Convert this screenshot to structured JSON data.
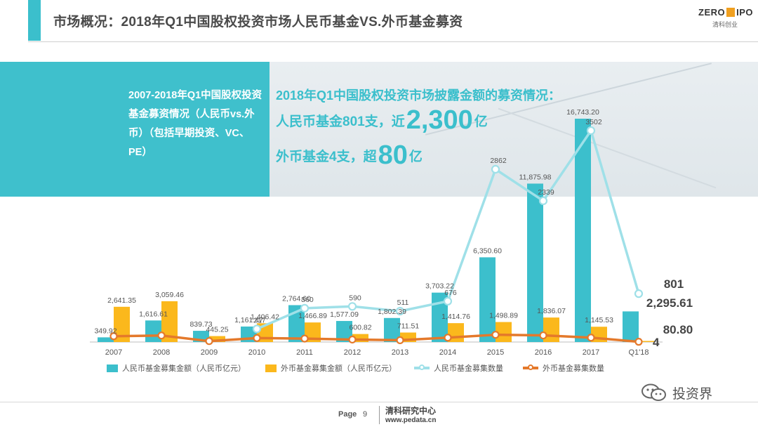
{
  "header": {
    "title": "市场概况：2018年Q1中国股权投资市场人民币基金VS.外币基金募资",
    "logo_main": "ZERO",
    "logo_tail": "IPO",
    "logo_sub": "清科创业"
  },
  "banner": {
    "left_text": "2007-2018年Q1中国股权投资基金募资情况（人民币vs.外币）（包括早期投资、VC、PE）",
    "headline": "2018年Q1中国股权投资市场披露金额的募资情况：",
    "line1_pre": "人民币基金801支，近",
    "line1_big": "2,300",
    "line1_post": "亿",
    "line2_pre": "外币基金4支，超",
    "line2_big": "80",
    "line2_post": "亿"
  },
  "chart_data": {
    "type": "bar",
    "categories": [
      "2007",
      "2008",
      "2009",
      "2010",
      "2011",
      "2012",
      "2013",
      "2014",
      "2015",
      "2016",
      "2017",
      "Q1'18"
    ],
    "series": [
      {
        "name": "人民币基金募集金额（人民币亿元）",
        "kind": "bar",
        "color": "#3cbfcc",
        "values": [
          349.92,
          1616.61,
          839.73,
          1161.47,
          2764.6,
          1577.09,
          1802.39,
          3703.22,
          6350.6,
          11875.98,
          16743.2,
          2295.61
        ],
        "labels": [
          "349.92",
          "1,616.61",
          "839.73",
          "1,161.47",
          "2,764.60",
          "1,577.09",
          "1,802.39",
          "3,703.22",
          "6,350.60",
          "11,875.98",
          "16,743.20",
          "2,295.61"
        ]
      },
      {
        "name": "外币基金募集金额（人民币亿元）",
        "kind": "bar",
        "color": "#fbb81c",
        "values": [
          2641.35,
          3059.46,
          445.25,
          1406.42,
          1466.89,
          600.82,
          711.51,
          1414.76,
          1498.89,
          1836.07,
          1145.53,
          80.8
        ],
        "labels": [
          "2,641.35",
          "3,059.46",
          "445.25",
          "1,406.42",
          "1,466.89",
          "600.82",
          "711.51",
          "1,414.76",
          "1,498.89",
          "1,836.07",
          "1,145.53",
          "80.80"
        ]
      },
      {
        "name": "人民币基金募集数量",
        "kind": "line",
        "color": "#9fe0e8",
        "values": [
          null,
          null,
          null,
          217,
          560,
          590,
          511,
          676,
          2862,
          2339,
          3502,
          801
        ],
        "labels": [
          "",
          "",
          "",
          "217",
          "560",
          "590",
          "511",
          "676",
          "2862",
          "2339",
          "3502",
          "801"
        ]
      },
      {
        "name": "外币基金募集数量",
        "kind": "line",
        "color": "#e4792b",
        "values": [
          96,
          108,
          15,
          66,
          57,
          41,
          30,
          73,
          120,
          110,
          73,
          4
        ],
        "labels": [
          "",
          "",
          "",
          "",
          "",
          "",
          "",
          "",
          "",
          "",
          "",
          "4"
        ]
      }
    ]
  },
  "footer": {
    "wechat": "投资界",
    "page_label": "Page",
    "page_number": "9",
    "center_name": "清科研究中心",
    "center_url": "www.pedata.cn"
  }
}
